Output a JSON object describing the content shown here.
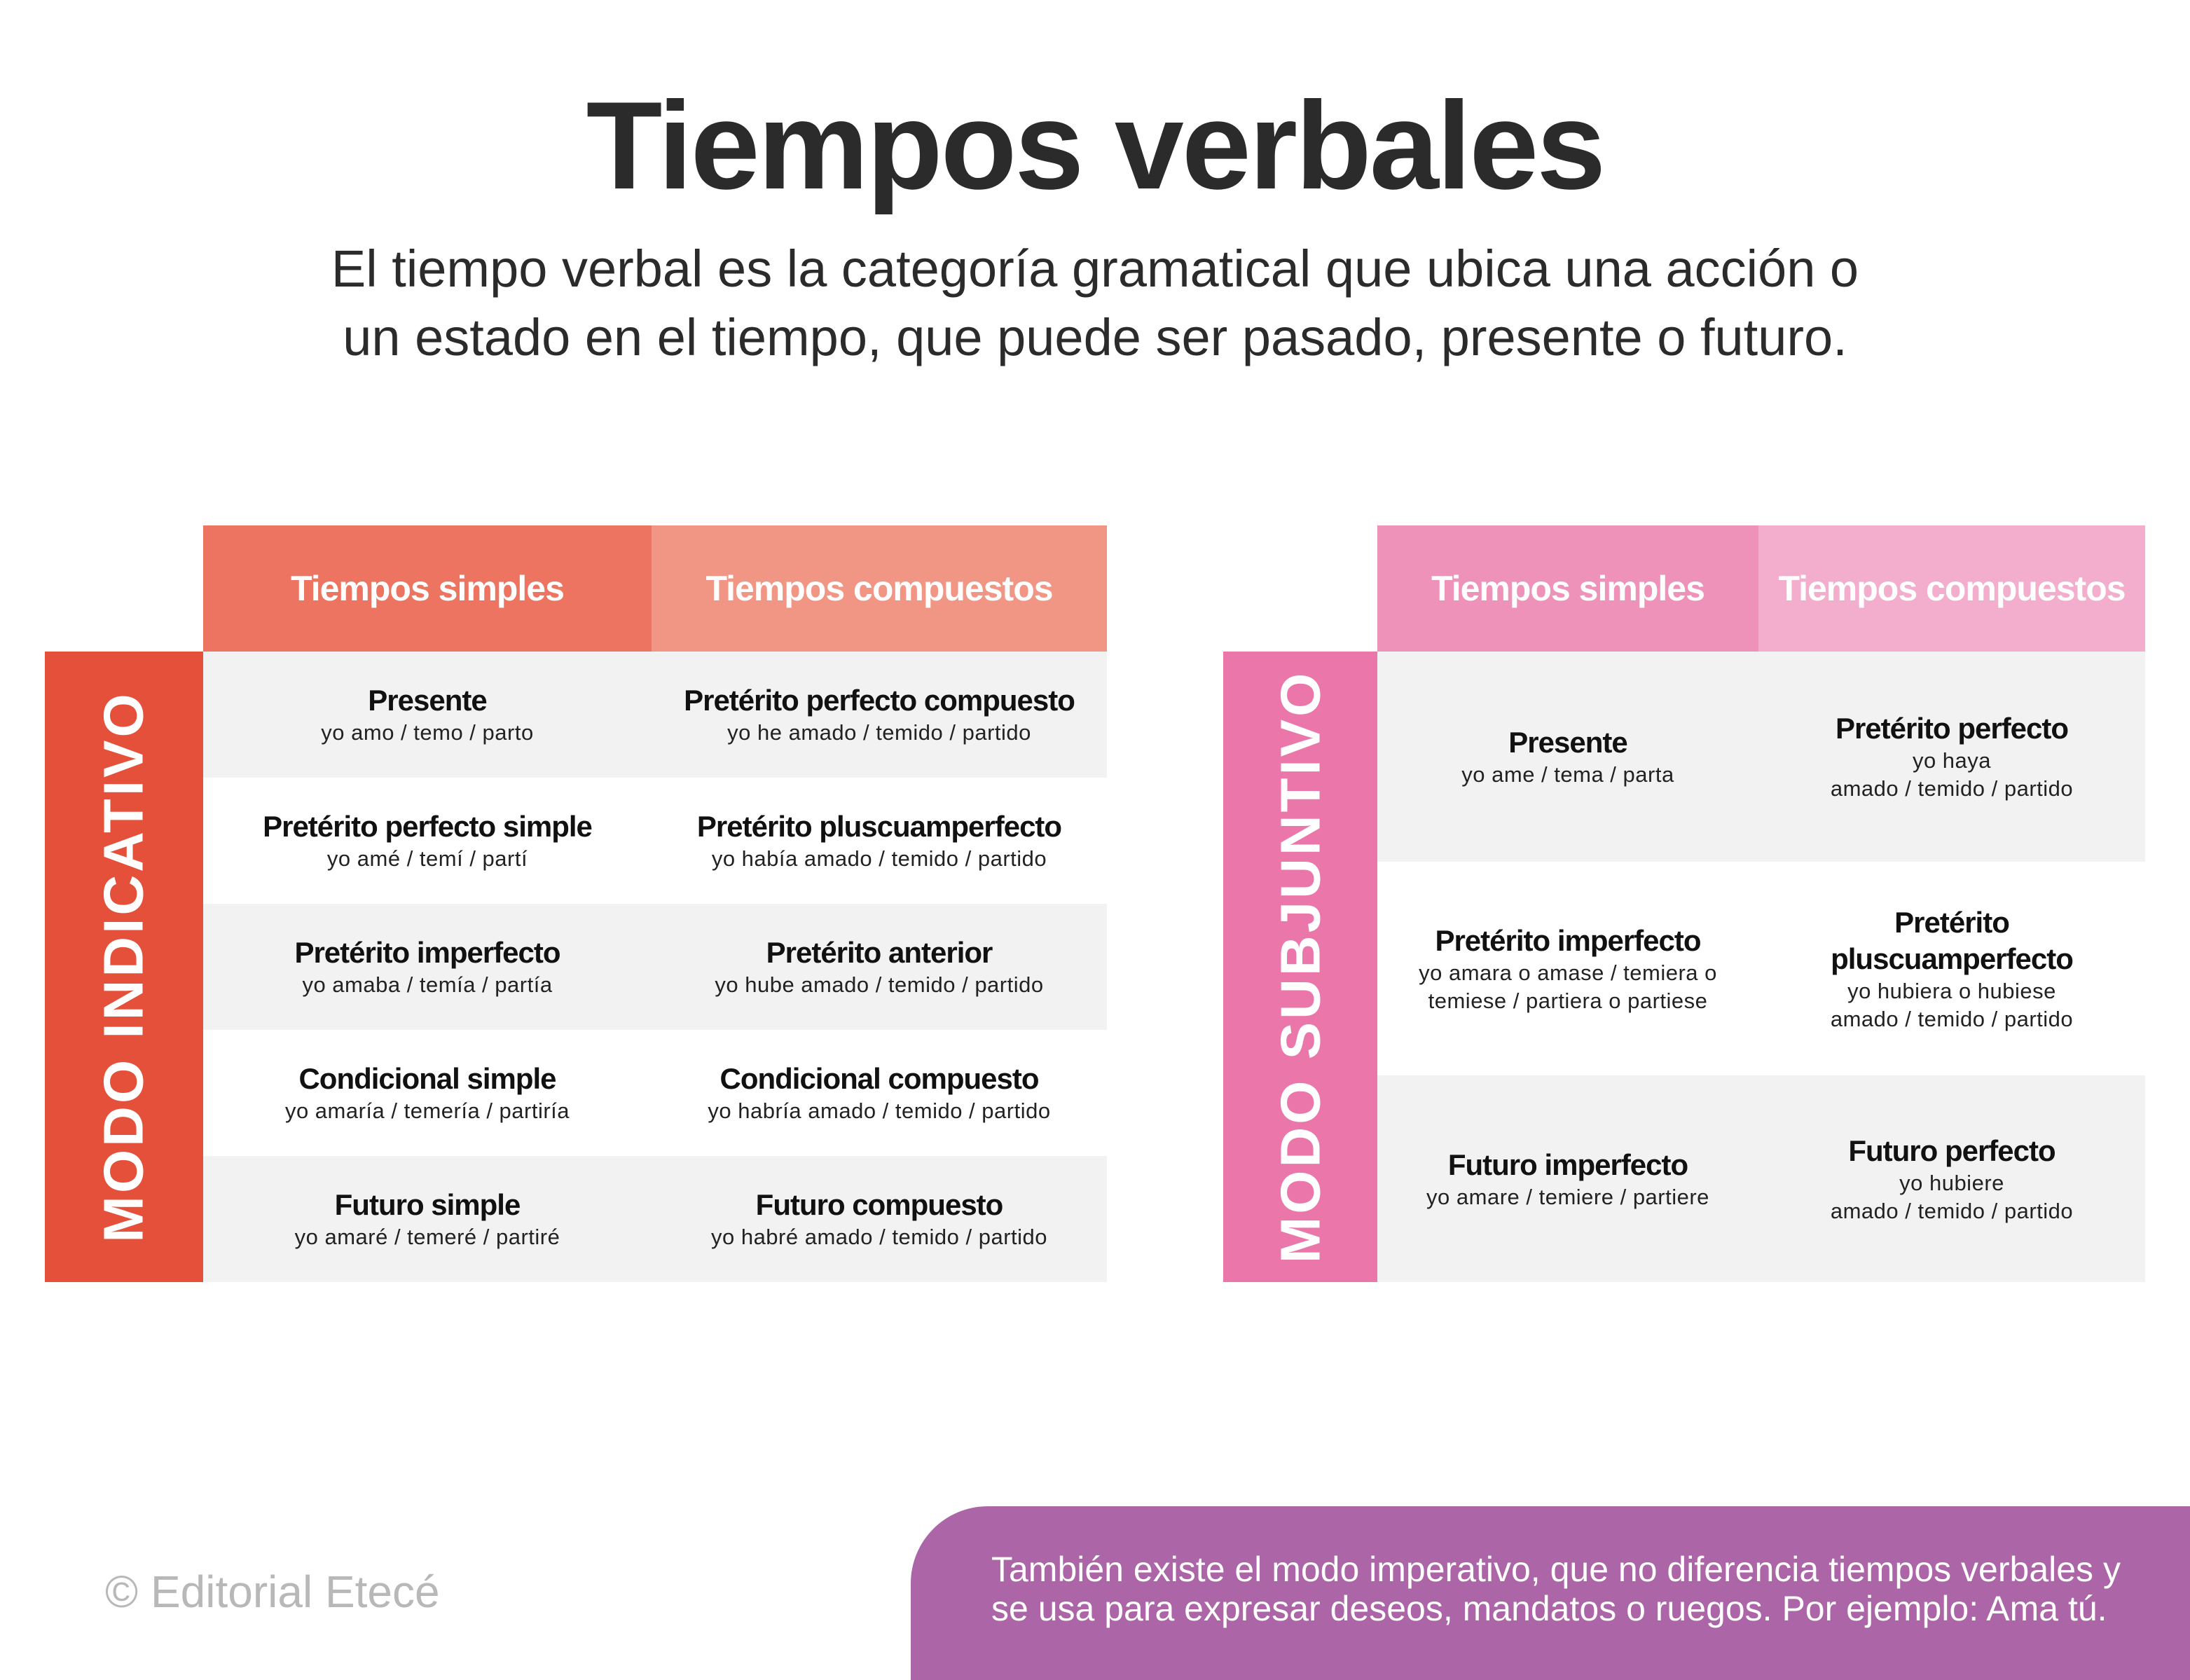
{
  "title": "Tiempos verbales",
  "subtitle": [
    "El tiempo verbal es la categoría gramatical que ubica una acción o",
    "un estado en el tiempo, que puede ser pasado, presente o futuro."
  ],
  "colors": {
    "indicativo_side": "#E4503A",
    "indicativo_simples": "#EC7460",
    "indicativo_compuestos": "#F19684",
    "subjuntivo_side": "#EB77AA",
    "subjuntivo_simples": "#EF92BA",
    "subjuntivo_compuestos": "#F3ADCD",
    "row_gray": "#F2F2F2",
    "note_bg": "#AC65A6"
  },
  "indicativo": {
    "label": "MODO INDICATIVO",
    "headers": [
      "Tiempos simples",
      "Tiempos compuestos"
    ],
    "rows": [
      [
        {
          "name": "Presente",
          "ex": "yo amo / temo / parto"
        },
        {
          "name": "Pretérito perfecto compuesto",
          "ex": "yo he amado / temido / partido"
        }
      ],
      [
        {
          "name": "Pretérito perfecto simple",
          "ex": "yo amé / temí / partí"
        },
        {
          "name": "Pretérito pluscuamperfecto",
          "ex": "yo había amado / temido / partido"
        }
      ],
      [
        {
          "name": "Pretérito imperfecto",
          "ex": "yo amaba / temía / partía"
        },
        {
          "name": "Pretérito anterior",
          "ex": "yo hube amado / temido / partido"
        }
      ],
      [
        {
          "name": "Condicional simple",
          "ex": "yo amaría / temería / partiría"
        },
        {
          "name": "Condicional compuesto",
          "ex": "yo habría amado / temido / partido"
        }
      ],
      [
        {
          "name": "Futuro simple",
          "ex": "yo amaré / temeré / partiré"
        },
        {
          "name": "Futuro compuesto",
          "ex": "yo habré amado / temido / partido"
        }
      ]
    ]
  },
  "subjuntivo": {
    "label": "MODO SUBJUNTIVO",
    "headers": [
      "Tiempos simples",
      "Tiempos compuestos"
    ],
    "rows": [
      [
        {
          "name": "Presente",
          "ex": "yo ame / tema / parta"
        },
        {
          "name": "Pretérito perfecto",
          "ex": "yo haya",
          "ex2": "amado / temido / partido"
        }
      ],
      [
        {
          "name": "Pretérito imperfecto",
          "ex": "yo amara o amase / temiera o",
          "ex2": "temiese / partiera o partiese"
        },
        {
          "name": "Pretérito pluscuamperfecto",
          "ex": "yo hubiera o hubiese",
          "ex2": "amado / temido / partido"
        }
      ],
      [
        {
          "name": "Futuro imperfecto",
          "ex": "yo amare / temiere / partiere"
        },
        {
          "name": "Futuro perfecto",
          "ex": "yo hubiere",
          "ex2": "amado / temido / partido"
        }
      ]
    ]
  },
  "copyright": "© Editorial Etecé",
  "note": "También existe el modo imperativo, que no diferencia tiempos verbales y se usa para expresar deseos, mandatos o ruegos. Por ejemplo: Ama tú."
}
